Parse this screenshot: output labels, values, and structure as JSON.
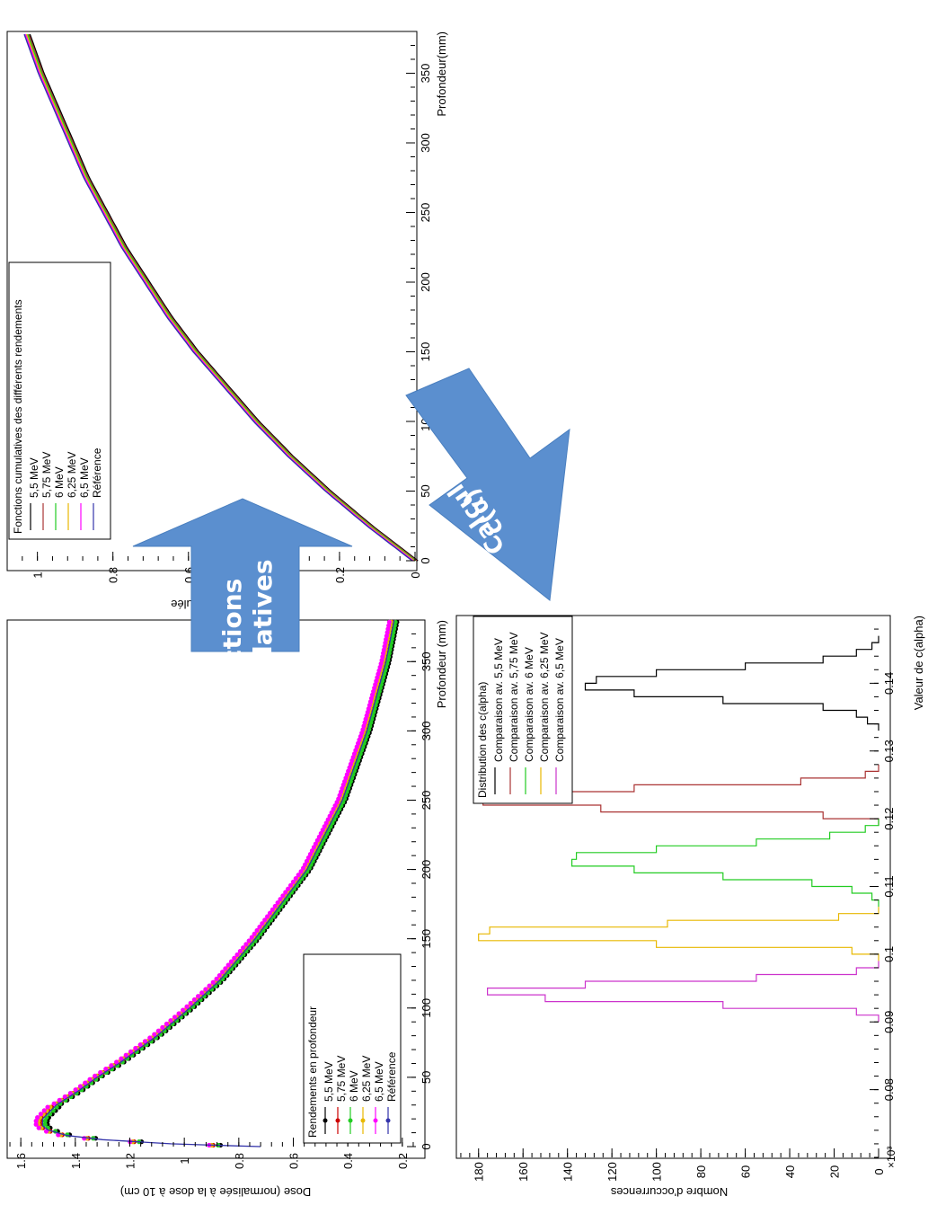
{
  "chart_data": [
    {
      "type": "scatter",
      "ylabel": "Dose (normalisée à la dose à 10 cm)",
      "xlabel": "Profondeur (mm)",
      "xlim": [
        0,
        380
      ],
      "ylim": [
        0.15,
        1.65
      ],
      "xticks": [
        0,
        50,
        100,
        150,
        200,
        250,
        300,
        350
      ],
      "yticks": [
        0.2,
        0.4,
        0.6,
        0.8,
        1,
        1.2,
        1.4,
        1.6
      ],
      "legend": {
        "title": "Rendements en profondeur",
        "position": "bottom-left",
        "entries": [
          "5,5 MeV",
          "5,75 MeV",
          "6 MeV",
          "6,25 MeV",
          "6,5 MeV",
          "Référence"
        ]
      },
      "series": [
        {
          "name": "5,5 MeV",
          "color": "#000000"
        },
        {
          "name": "5,75 MeV",
          "color": "#cc0000"
        },
        {
          "name": "6 MeV",
          "color": "#22cc22"
        },
        {
          "name": "6,25 MeV",
          "color": "#e8b800"
        },
        {
          "name": "6,5 MeV",
          "color": "#ff00ff"
        },
        {
          "name": "Référence",
          "color": "#3333aa"
        }
      ],
      "reference_curve": {
        "x": [
          0,
          2,
          5,
          8,
          12,
          15,
          20,
          30,
          40,
          50,
          60,
          80,
          100,
          120,
          150,
          200,
          250,
          300,
          350,
          380
        ],
        "y": [
          0.72,
          1.05,
          1.3,
          1.43,
          1.5,
          1.52,
          1.52,
          1.47,
          1.39,
          1.32,
          1.24,
          1.1,
          0.98,
          0.87,
          0.74,
          0.55,
          0.42,
          0.33,
          0.26,
          0.23
        ]
      }
    },
    {
      "type": "line",
      "ylabel": "Densité Cumulée",
      "xlabel": "Profondeur(mm)",
      "xlim": [
        0,
        380
      ],
      "ylim": [
        0,
        1.08
      ],
      "xticks": [
        0,
        50,
        100,
        150,
        200,
        250,
        300,
        350
      ],
      "yticks": [
        0,
        0.2,
        0.4,
        0.6,
        0.8,
        1
      ],
      "legend": {
        "title": "Fonctions cumulatives des différents rendements",
        "position": "top-left",
        "entries": [
          "5,5 MeV",
          "5,75 MeV",
          "6 MeV",
          "6,25 MeV",
          "6,5 MeV",
          "Référence"
        ]
      },
      "series": [
        {
          "name": "5,5 MeV",
          "color": "#000000"
        },
        {
          "name": "5,75 MeV",
          "color": "#aa3333"
        },
        {
          "name": "6 MeV",
          "color": "#22cc22"
        },
        {
          "name": "6,25 MeV",
          "color": "#e8b800"
        },
        {
          "name": "6,5 MeV",
          "color": "#ff00ff"
        },
        {
          "name": "Référence",
          "color": "#3333aa"
        }
      ],
      "curve": {
        "x": [
          0,
          25,
          50,
          75,
          100,
          125,
          150,
          175,
          200,
          225,
          250,
          275,
          300,
          325,
          350,
          380
        ],
        "y": [
          0,
          0.12,
          0.23,
          0.33,
          0.42,
          0.5,
          0.58,
          0.65,
          0.71,
          0.77,
          0.82,
          0.87,
          0.91,
          0.95,
          0.99,
          1.03
        ]
      }
    },
    {
      "type": "histogram",
      "ylabel": "Nombre d'occurrences",
      "xlabel": "Valeur de c(alpha)",
      "y_multiplier": "×10³",
      "xlim": [
        0.07,
        0.15
      ],
      "ylim": [
        0,
        190
      ],
      "xticks": [
        0.08,
        0.09,
        0.1,
        0.11,
        0.12,
        0.13,
        0.14
      ],
      "yticks": [
        0,
        20,
        40,
        60,
        80,
        100,
        120,
        140,
        160,
        180
      ],
      "legend": {
        "title": "Distribution des c(alpha)",
        "position": "top-right",
        "entries": [
          "Comparaison av. 5,5 MeV",
          "Comparaison av. 5,75 MeV",
          "Comparaison av. 6 MeV",
          "Comparaison av. 6,25 MeV",
          "Comparaison av. 6,5 MeV"
        ]
      },
      "series": [
        {
          "name": "Comparaison av. 5,5 MeV",
          "color": "#000000",
          "x": [
            0.1335,
            0.1345,
            0.1355,
            0.1365,
            0.1375,
            0.1385,
            0.1395,
            0.1405,
            0.1415,
            0.1425,
            0.1435,
            0.1445,
            0.1455,
            0.1465
          ],
          "y": [
            0,
            5,
            10,
            25,
            70,
            110,
            132,
            127,
            100,
            60,
            25,
            10,
            3,
            0
          ]
        },
        {
          "name": "Comparaison av. 5,75 MeV",
          "color": "#aa3333",
          "x": [
            0.1195,
            0.1205,
            0.1215,
            0.1225,
            0.1235,
            0.1245,
            0.1255,
            0.1265,
            0.1275
          ],
          "y": [
            0,
            25,
            125,
            178,
            175,
            110,
            35,
            6,
            0
          ]
        },
        {
          "name": "Comparaison av. 6 MeV",
          "color": "#22cc22",
          "x": [
            0.1075,
            0.1085,
            0.1095,
            0.1105,
            0.1115,
            0.1125,
            0.1135,
            0.1145,
            0.1155,
            0.1165,
            0.1175,
            0.1185,
            0.1195
          ],
          "y": [
            0,
            3,
            12,
            30,
            70,
            110,
            138,
            136,
            100,
            55,
            22,
            6,
            0
          ]
        },
        {
          "name": "Comparaison av. 6,25 MeV",
          "color": "#e8b800",
          "x": [
            0.0995,
            0.1005,
            0.1015,
            0.1025,
            0.1035,
            0.1045,
            0.1055,
            0.1065
          ],
          "y": [
            0,
            12,
            100,
            180,
            175,
            95,
            18,
            0
          ]
        },
        {
          "name": "Comparaison av. 6,5 MeV",
          "color": "#cc33cc",
          "x": [
            0.0905,
            0.0915,
            0.0925,
            0.0935,
            0.0945,
            0.0955,
            0.0965,
            0.0975,
            0.0985
          ],
          "y": [
            0,
            10,
            70,
            150,
            176,
            132,
            55,
            10,
            0
          ]
        }
      ]
    }
  ],
  "arrows": [
    {
      "label_line1": "Fonctions",
      "label_line2": "Cumulatives",
      "color": "#5b8fcf"
    },
    {
      "label_line1": "Calcul des",
      "label_line2": "c(α)",
      "color": "#5b8fcf"
    }
  ]
}
